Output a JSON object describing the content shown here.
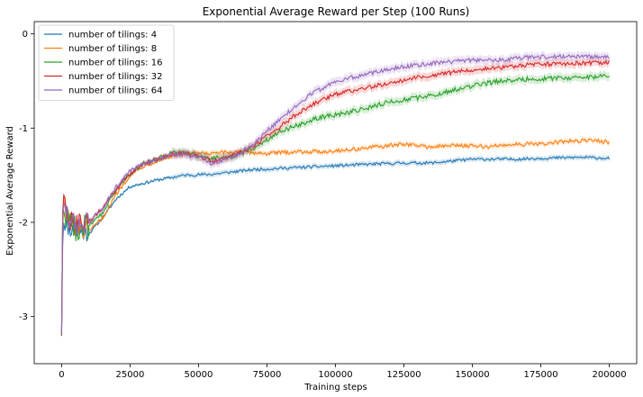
{
  "chart_data": {
    "type": "line",
    "title": "Exponential Average Reward per Step (100 Runs)",
    "xlabel": "Training steps",
    "ylabel": "Exponential Average Reward",
    "xlim": [
      -10000,
      210000
    ],
    "ylim": [
      -3.5,
      0.13
    ],
    "x_ticks": [
      0,
      25000,
      50000,
      75000,
      100000,
      125000,
      150000,
      175000,
      200000
    ],
    "x_tick_labels": [
      "0",
      "25000",
      "50000",
      "75000",
      "100000",
      "125000",
      "150000",
      "175000",
      "200000"
    ],
    "y_ticks": [
      0,
      -1,
      -2,
      -3
    ],
    "y_tick_labels": [
      "0",
      "-1",
      "-2",
      "-3"
    ],
    "grid": false,
    "legend_position": "top-left",
    "series": [
      {
        "name": "number of tilings: 4",
        "color": "#1f77b4",
        "x": [
          0,
          500,
          1000,
          2000,
          5000,
          10000,
          15000,
          20000,
          25000,
          35000,
          45000,
          55000,
          70000,
          85000,
          100000,
          115000,
          125000,
          135000,
          150000,
          165000,
          175000,
          190000,
          200000
        ],
        "values": [
          -3.15,
          -1.95,
          -2.0,
          -2.05,
          -2.1,
          -2.12,
          -1.95,
          -1.75,
          -1.62,
          -1.55,
          -1.5,
          -1.49,
          -1.44,
          -1.42,
          -1.4,
          -1.38,
          -1.37,
          -1.37,
          -1.33,
          -1.33,
          -1.32,
          -1.31,
          -1.32
        ]
      },
      {
        "name": "number of tilings: 8",
        "color": "#ff7f0e",
        "x": [
          0,
          500,
          1000,
          2000,
          5000,
          10000,
          15000,
          20000,
          25000,
          30000,
          40000,
          45000,
          55000,
          65000,
          75000,
          85000,
          95000,
          105000,
          115000,
          125000,
          135000,
          145000,
          155000,
          165000,
          175000,
          185000,
          195000,
          200000
        ],
        "values": [
          -3.15,
          -1.75,
          -1.85,
          -1.95,
          -2.05,
          -2.1,
          -1.95,
          -1.7,
          -1.5,
          -1.4,
          -1.3,
          -1.27,
          -1.27,
          -1.25,
          -1.27,
          -1.25,
          -1.25,
          -1.23,
          -1.2,
          -1.17,
          -1.2,
          -1.18,
          -1.2,
          -1.17,
          -1.17,
          -1.14,
          -1.13,
          -1.15
        ]
      },
      {
        "name": "number of tilings: 16",
        "color": "#2ca02c",
        "x": [
          0,
          500,
          1000,
          2000,
          5000,
          10000,
          15000,
          20000,
          25000,
          30000,
          40000,
          45000,
          50000,
          55000,
          62000,
          70000,
          75000,
          80000,
          85000,
          90000,
          95000,
          100000,
          110000,
          120000,
          130000,
          140000,
          150000,
          160000,
          170000,
          180000,
          190000,
          200000
        ],
        "values": [
          -3.15,
          -1.7,
          -1.85,
          -1.95,
          -2.05,
          -2.05,
          -1.9,
          -1.65,
          -1.48,
          -1.38,
          -1.27,
          -1.25,
          -1.3,
          -1.32,
          -1.3,
          -1.22,
          -1.12,
          -1.03,
          -0.98,
          -0.93,
          -0.88,
          -0.86,
          -0.8,
          -0.72,
          -0.68,
          -0.62,
          -0.55,
          -0.5,
          -0.48,
          -0.47,
          -0.47,
          -0.44
        ]
      },
      {
        "name": "number of tilings: 32",
        "color": "#d62728",
        "x": [
          0,
          500,
          1000,
          2000,
          5000,
          10000,
          15000,
          20000,
          25000,
          30000,
          40000,
          45000,
          50000,
          55000,
          62000,
          70000,
          75000,
          80000,
          85000,
          90000,
          95000,
          100000,
          110000,
          120000,
          130000,
          140000,
          150000,
          160000,
          170000,
          180000,
          190000,
          200000
        ],
        "values": [
          -3.15,
          -1.65,
          -1.8,
          -1.95,
          -2.05,
          -2.0,
          -1.85,
          -1.65,
          -1.48,
          -1.38,
          -1.28,
          -1.27,
          -1.3,
          -1.35,
          -1.3,
          -1.2,
          -1.08,
          -0.98,
          -0.87,
          -0.78,
          -0.7,
          -0.64,
          -0.58,
          -0.52,
          -0.46,
          -0.42,
          -0.38,
          -0.36,
          -0.33,
          -0.32,
          -0.31,
          -0.3
        ]
      },
      {
        "name": "number of tilings: 64",
        "color": "#9467bd",
        "x": [
          0,
          500,
          1000,
          2000,
          5000,
          10000,
          15000,
          20000,
          25000,
          30000,
          40000,
          45000,
          50000,
          55000,
          62000,
          70000,
          75000,
          80000,
          85000,
          90000,
          95000,
          100000,
          110000,
          120000,
          130000,
          140000,
          150000,
          160000,
          170000,
          180000,
          190000,
          200000
        ],
        "values": [
          -3.15,
          -1.6,
          -1.75,
          -1.95,
          -2.05,
          -2.0,
          -1.85,
          -1.62,
          -1.46,
          -1.38,
          -1.28,
          -1.28,
          -1.3,
          -1.38,
          -1.32,
          -1.18,
          -1.03,
          -0.9,
          -0.78,
          -0.66,
          -0.58,
          -0.5,
          -0.44,
          -0.37,
          -0.33,
          -0.3,
          -0.28,
          -0.28,
          -0.25,
          -0.24,
          -0.24,
          -0.25
        ]
      }
    ]
  }
}
